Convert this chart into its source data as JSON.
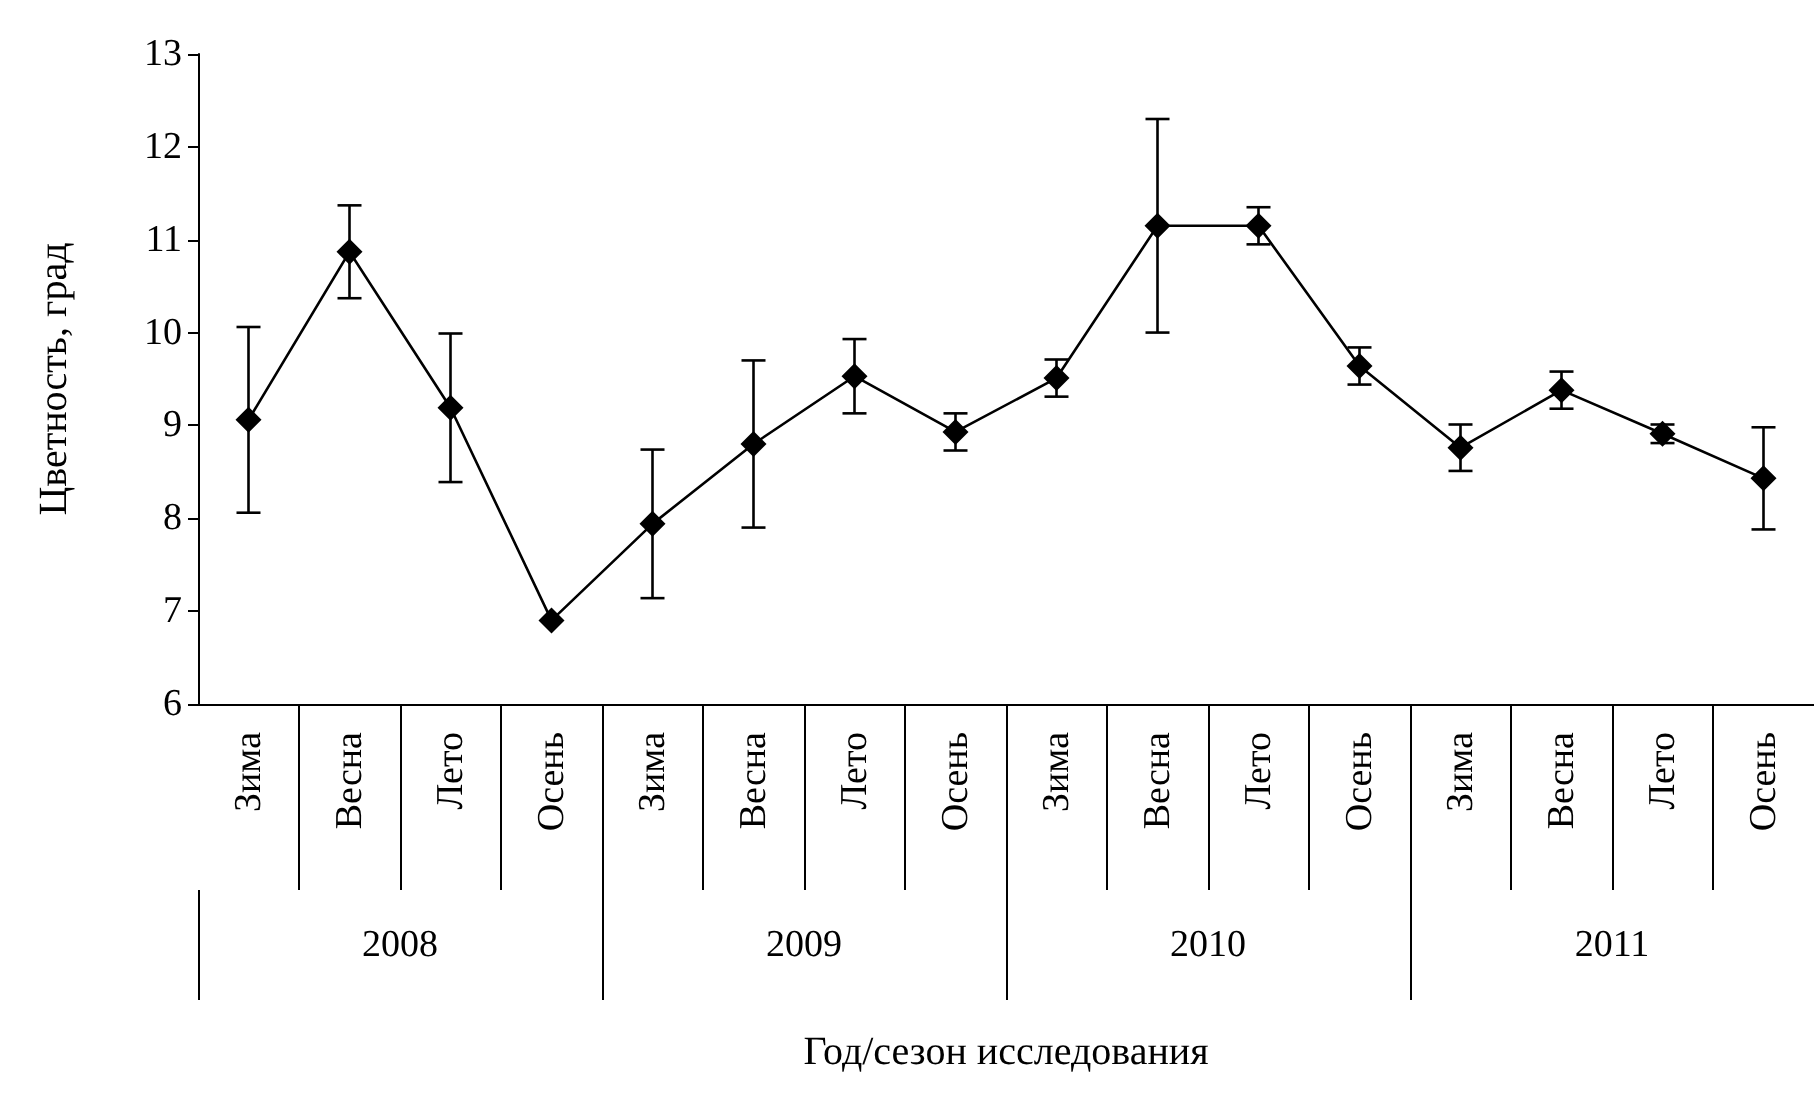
{
  "chart_data": {
    "type": "line",
    "xlabel": "Год/сезон исследования",
    "ylabel": "Цветность, град",
    "categories": [
      "Зима",
      "Весна",
      "Лето",
      "Осень",
      "Зима",
      "Весна",
      "Лето",
      "Осень",
      "Зима",
      "Весна",
      "Лето",
      "Осень",
      "Зима",
      "Весна",
      "Лето",
      "Осень"
    ],
    "annotations": [
      "2008",
      "2009",
      "2010",
      "2011"
    ],
    "series": [
      {
        "color": "#000000",
        "values": [
          9.06,
          10.87,
          9.19,
          6.9,
          7.94,
          8.8,
          9.53,
          8.93,
          9.51,
          11.15,
          11.15,
          9.64,
          8.76,
          9.38,
          8.91,
          8.43
        ],
        "errors": [
          1.0,
          0.5,
          0.8,
          null,
          0.8,
          0.9,
          0.4,
          0.2,
          0.2,
          1.15,
          0.2,
          0.2,
          0.25,
          0.2,
          0.1,
          0.55
        ]
      }
    ],
    "ylim": [
      6,
      13
    ],
    "yticks": [
      6,
      7,
      8,
      9,
      10,
      11,
      12,
      13
    ],
    "grid": false,
    "marker": "diamond",
    "line_style": "solid"
  }
}
